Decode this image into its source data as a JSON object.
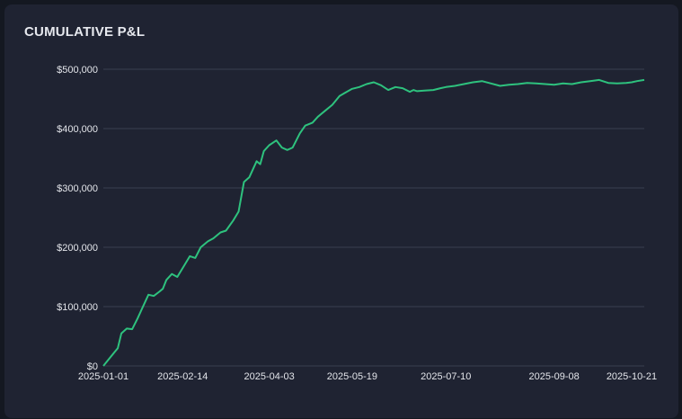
{
  "chart_data": {
    "type": "line",
    "title": "CUMULATIVE P&L",
    "xlabel": "",
    "ylabel": "",
    "ylim": [
      0,
      500000
    ],
    "xlim": [
      "2025-01-01",
      "2025-10-28"
    ],
    "grid": true,
    "line_color": "#2ec27e",
    "y_ticks": [
      {
        "value": 0,
        "label": "$0"
      },
      {
        "value": 100000,
        "label": "$100,000"
      },
      {
        "value": 200000,
        "label": "$200,000"
      },
      {
        "value": 300000,
        "label": "$300,000"
      },
      {
        "value": 400000,
        "label": "$400,000"
      },
      {
        "value": 500000,
        "label": "$500,000"
      }
    ],
    "x_ticks": [
      "2025-01-01",
      "2025-02-14",
      "2025-04-03",
      "2025-05-19",
      "2025-07-10",
      "2025-09-08",
      "2025-10-21"
    ],
    "series": [
      {
        "x": [
          "2025-01-01",
          "2025-01-05",
          "2025-01-09",
          "2025-01-11",
          "2025-01-14",
          "2025-01-17",
          "2025-01-20",
          "2025-01-23",
          "2025-01-26",
          "2025-01-29",
          "2025-02-01",
          "2025-02-03",
          "2025-02-05",
          "2025-02-08",
          "2025-02-11",
          "2025-02-14",
          "2025-02-18",
          "2025-02-21",
          "2025-02-24",
          "2025-02-28",
          "2025-03-03",
          "2025-03-07",
          "2025-03-10",
          "2025-03-14",
          "2025-03-17",
          "2025-03-20",
          "2025-03-23",
          "2025-03-27",
          "2025-03-29",
          "2025-03-31",
          "2025-04-03",
          "2025-04-07",
          "2025-04-10",
          "2025-04-13",
          "2025-04-16",
          "2025-04-20",
          "2025-04-23",
          "2025-04-27",
          "2025-04-30",
          "2025-05-04",
          "2025-05-08",
          "2025-05-12",
          "2025-05-16",
          "2025-05-19",
          "2025-05-23",
          "2025-05-27",
          "2025-05-31",
          "2025-06-04",
          "2025-06-08",
          "2025-06-12",
          "2025-06-16",
          "2025-06-20",
          "2025-06-22",
          "2025-06-24",
          "2025-06-28",
          "2025-07-03",
          "2025-07-07",
          "2025-07-10",
          "2025-07-15",
          "2025-07-20",
          "2025-07-25",
          "2025-07-30",
          "2025-08-04",
          "2025-08-09",
          "2025-08-14",
          "2025-08-19",
          "2025-08-24",
          "2025-08-29",
          "2025-09-03",
          "2025-09-08",
          "2025-09-13",
          "2025-09-18",
          "2025-09-23",
          "2025-09-28",
          "2025-10-03",
          "2025-10-08",
          "2025-10-13",
          "2025-10-18",
          "2025-10-21",
          "2025-10-24",
          "2025-10-28"
        ],
        "y": [
          0,
          15000,
          30000,
          55000,
          63000,
          62000,
          80000,
          100000,
          120000,
          118000,
          125000,
          130000,
          145000,
          155000,
          150000,
          165000,
          185000,
          182000,
          200000,
          210000,
          215000,
          225000,
          228000,
          245000,
          260000,
          310000,
          318000,
          345000,
          340000,
          362000,
          372000,
          380000,
          368000,
          364000,
          368000,
          392000,
          405000,
          410000,
          420000,
          430000,
          440000,
          455000,
          462000,
          467000,
          470000,
          475000,
          478000,
          473000,
          465000,
          470000,
          468000,
          462000,
          465000,
          463000,
          464000,
          465000,
          468000,
          470000,
          472000,
          475000,
          478000,
          480000,
          476000,
          472000,
          474000,
          475000,
          477000,
          476000,
          475000,
          474000,
          476000,
          475000,
          478000,
          480000,
          482000,
          477000,
          476000,
          477000,
          478000,
          480000,
          482000
        ]
      }
    ]
  }
}
